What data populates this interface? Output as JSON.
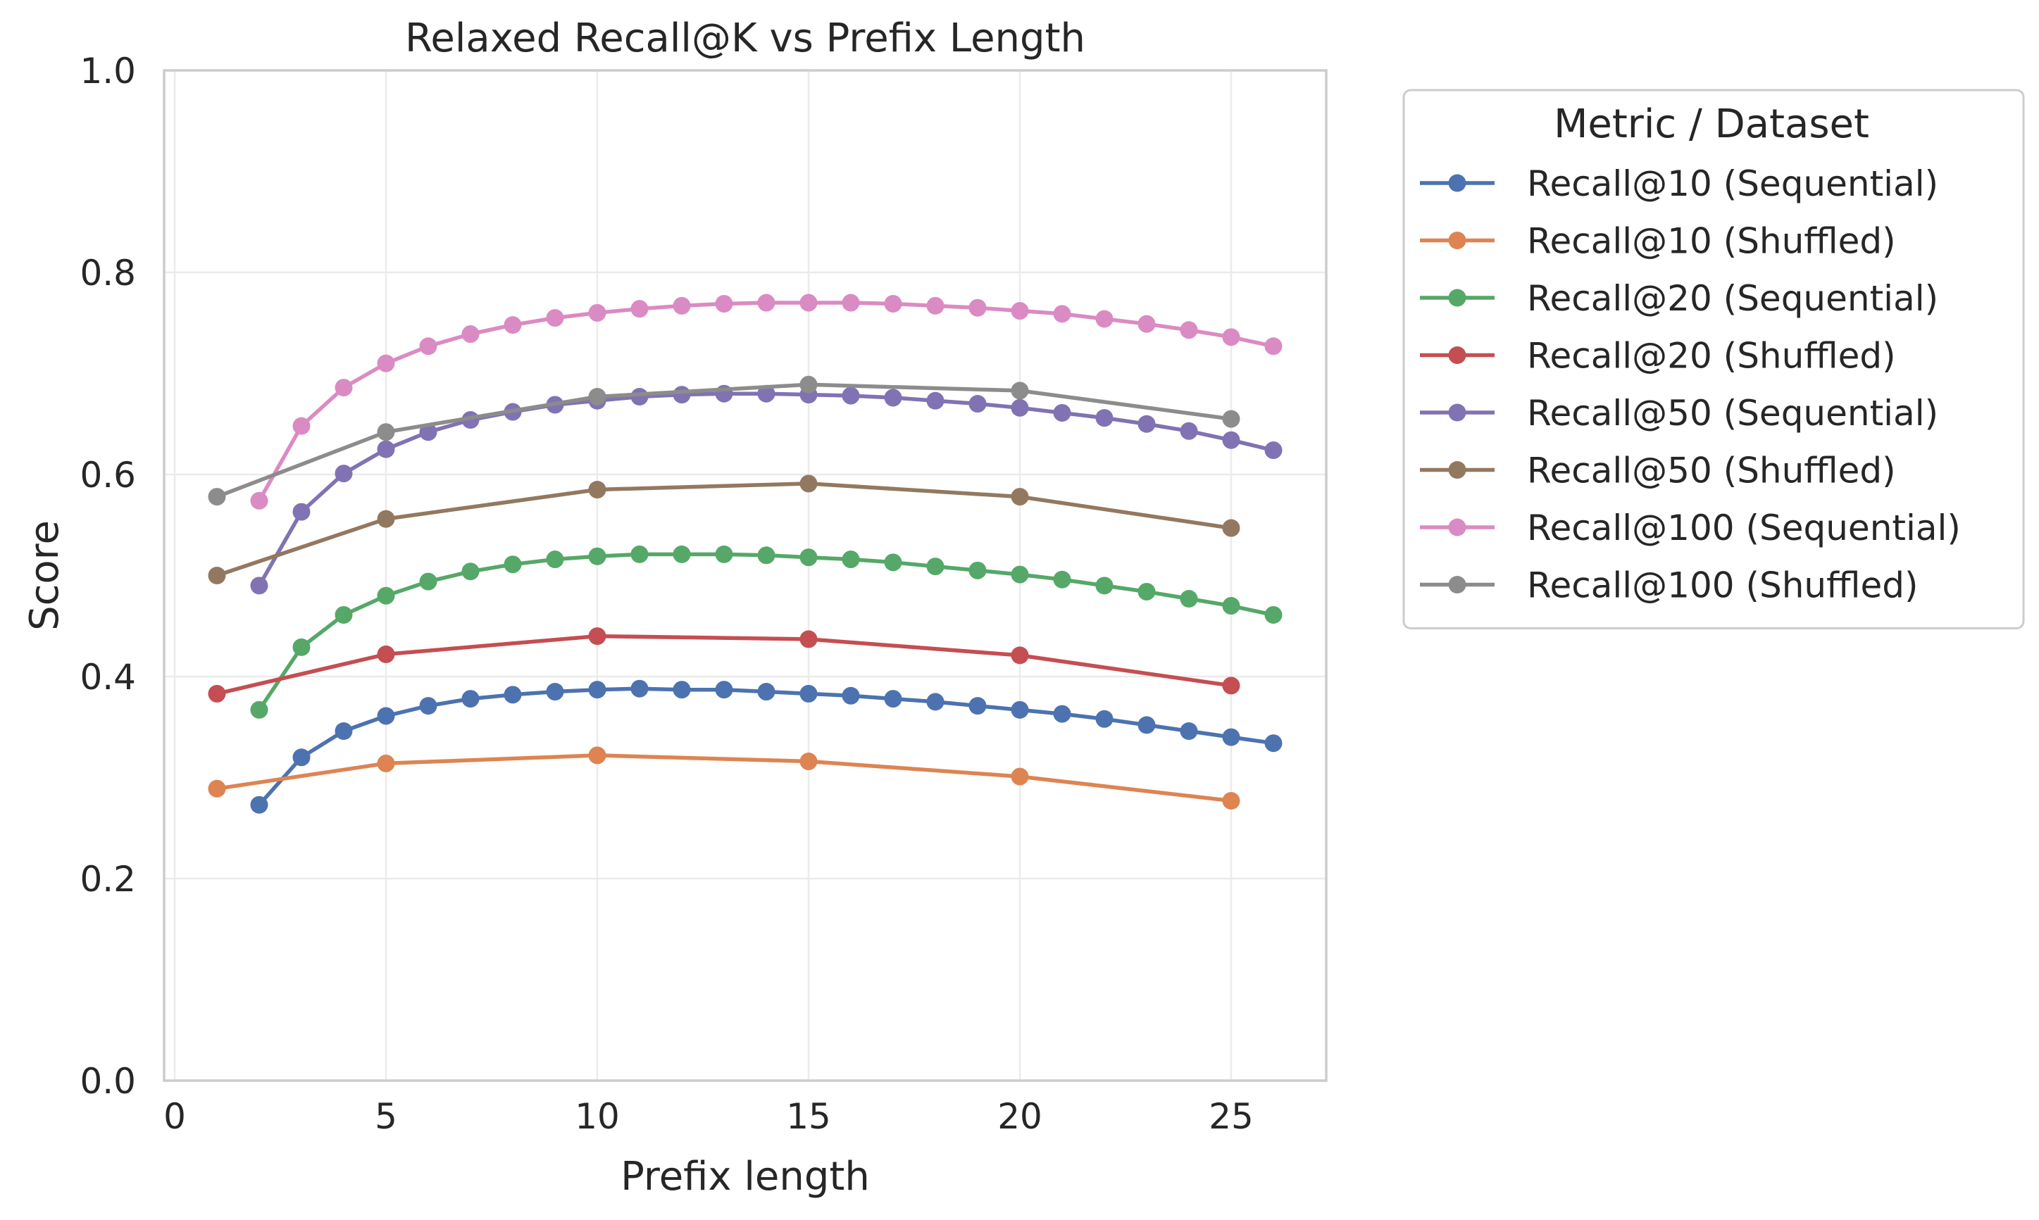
{
  "chart_data": {
    "type": "line",
    "title": "Relaxed Recall@K vs Prefix Length",
    "xlabel": "Prefix length",
    "ylabel": "Score",
    "xlim": [
      -0.25,
      27.25
    ],
    "ylim": [
      0.0,
      1.0
    ],
    "xticks": [
      0,
      5,
      10,
      15,
      20,
      25
    ],
    "yticks": [
      0.0,
      0.2,
      0.4,
      0.6,
      0.8,
      1.0
    ],
    "xtick_labels": [
      "0",
      "5",
      "10",
      "15",
      "20",
      "25"
    ],
    "ytick_labels": [
      "0.0",
      "0.2",
      "0.4",
      "0.6",
      "0.8",
      "1.0"
    ],
    "grid": true,
    "legend": {
      "title": "Metric / Dataset",
      "placement": "outside right"
    },
    "series": [
      {
        "name": "Recall@10 (Sequential)",
        "color": "#4c72b0",
        "x": [
          2,
          3,
          4,
          5,
          6,
          7,
          8,
          9,
          10,
          11,
          12,
          13,
          14,
          15,
          16,
          17,
          18,
          19,
          20,
          21,
          22,
          23,
          24,
          25,
          26
        ],
        "y": [
          0.273,
          0.32,
          0.346,
          0.361,
          0.371,
          0.378,
          0.382,
          0.385,
          0.387,
          0.388,
          0.387,
          0.387,
          0.385,
          0.383,
          0.381,
          0.378,
          0.375,
          0.371,
          0.367,
          0.363,
          0.358,
          0.352,
          0.346,
          0.34,
          0.334
        ]
      },
      {
        "name": "Recall@10 (Shuffled)",
        "color": "#dd8452",
        "x": [
          1,
          5,
          10,
          15,
          20,
          25
        ],
        "y": [
          0.289,
          0.314,
          0.322,
          0.316,
          0.301,
          0.277
        ]
      },
      {
        "name": "Recall@20 (Sequential)",
        "color": "#55a868",
        "x": [
          2,
          3,
          4,
          5,
          6,
          7,
          8,
          9,
          10,
          11,
          12,
          13,
          14,
          15,
          16,
          17,
          18,
          19,
          20,
          21,
          22,
          23,
          24,
          25,
          26
        ],
        "y": [
          0.367,
          0.429,
          0.461,
          0.48,
          0.494,
          0.504,
          0.511,
          0.516,
          0.519,
          0.521,
          0.521,
          0.521,
          0.52,
          0.518,
          0.516,
          0.513,
          0.509,
          0.505,
          0.501,
          0.496,
          0.49,
          0.484,
          0.477,
          0.47,
          0.461
        ]
      },
      {
        "name": "Recall@20 (Shuffled)",
        "color": "#c44e52",
        "x": [
          1,
          5,
          10,
          15,
          20,
          25
        ],
        "y": [
          0.383,
          0.422,
          0.44,
          0.437,
          0.421,
          0.391
        ]
      },
      {
        "name": "Recall@50 (Sequential)",
        "color": "#8172b3",
        "x": [
          2,
          3,
          4,
          5,
          6,
          7,
          8,
          9,
          10,
          11,
          12,
          13,
          14,
          15,
          16,
          17,
          18,
          19,
          20,
          21,
          22,
          23,
          24,
          25,
          26
        ],
        "y": [
          0.49,
          0.563,
          0.601,
          0.625,
          0.642,
          0.654,
          0.662,
          0.669,
          0.673,
          0.677,
          0.679,
          0.68,
          0.68,
          0.679,
          0.678,
          0.676,
          0.673,
          0.67,
          0.666,
          0.661,
          0.656,
          0.65,
          0.643,
          0.634,
          0.624
        ]
      },
      {
        "name": "Recall@50 (Shuffled)",
        "color": "#937860",
        "x": [
          1,
          5,
          10,
          15,
          20,
          25
        ],
        "y": [
          0.5,
          0.556,
          0.585,
          0.591,
          0.578,
          0.547
        ]
      },
      {
        "name": "Recall@100 (Sequential)",
        "color": "#da8bc3",
        "x": [
          2,
          3,
          4,
          5,
          6,
          7,
          8,
          9,
          10,
          11,
          12,
          13,
          14,
          15,
          16,
          17,
          18,
          19,
          20,
          21,
          22,
          23,
          24,
          25,
          26
        ],
        "y": [
          0.574,
          0.648,
          0.686,
          0.71,
          0.727,
          0.739,
          0.748,
          0.755,
          0.76,
          0.764,
          0.767,
          0.769,
          0.77,
          0.77,
          0.77,
          0.769,
          0.767,
          0.765,
          0.762,
          0.759,
          0.754,
          0.749,
          0.743,
          0.736,
          0.727
        ]
      },
      {
        "name": "Recall@100 (Shuffled)",
        "color": "#8c8c8c",
        "x": [
          1,
          5,
          10,
          15,
          20,
          25
        ],
        "y": [
          0.578,
          0.642,
          0.677,
          0.689,
          0.683,
          0.655
        ]
      }
    ]
  }
}
